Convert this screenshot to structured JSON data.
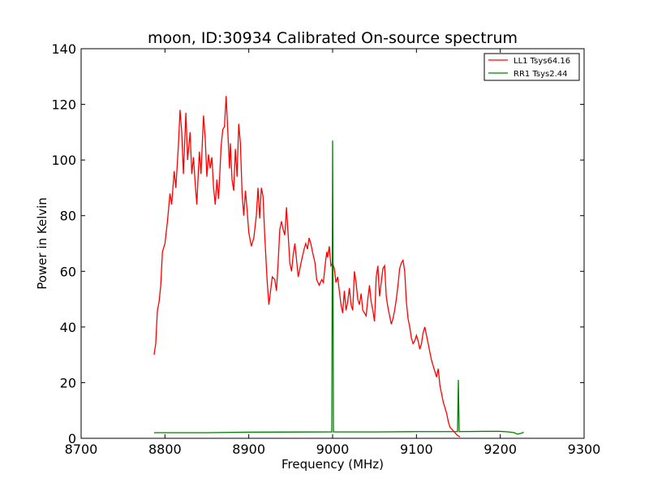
{
  "chart_data": {
    "type": "line",
    "title": "moon, ID:30934 Calibrated On-source spectrum",
    "xlabel": "Frequency (MHz)",
    "ylabel": "Power in Kelvin",
    "xlim": [
      8700,
      9300
    ],
    "ylim": [
      0,
      140
    ],
    "xticks": [
      8700,
      8800,
      8900,
      9000,
      9100,
      9200,
      9300
    ],
    "yticks": [
      0,
      20,
      40,
      60,
      80,
      100,
      120,
      140
    ],
    "grid": false,
    "legend_position": "top-right",
    "series": [
      {
        "name": "LL1 Tsys64.16",
        "color": "#ff0000",
        "points": [
          [
            8787,
            30
          ],
          [
            8789,
            34
          ],
          [
            8791,
            46
          ],
          [
            8793,
            49
          ],
          [
            8795,
            55
          ],
          [
            8797,
            67
          ],
          [
            8800,
            70
          ],
          [
            8803,
            78
          ],
          [
            8806,
            88
          ],
          [
            8808,
            84
          ],
          [
            8811,
            96
          ],
          [
            8813,
            90
          ],
          [
            8816,
            105
          ],
          [
            8818,
            118
          ],
          [
            8820,
            110
          ],
          [
            8822,
            95
          ],
          [
            8825,
            117
          ],
          [
            8827,
            100
          ],
          [
            8830,
            110
          ],
          [
            8832,
            95
          ],
          [
            8834,
            101
          ],
          [
            8836,
            92
          ],
          [
            8838,
            84
          ],
          [
            8841,
            103
          ],
          [
            8843,
            95
          ],
          [
            8846,
            116
          ],
          [
            8848,
            108
          ],
          [
            8850,
            94
          ],
          [
            8852,
            102
          ],
          [
            8854,
            97
          ],
          [
            8856,
            101
          ],
          [
            8858,
            90
          ],
          [
            8860,
            84
          ],
          [
            8862,
            93
          ],
          [
            8864,
            86
          ],
          [
            8867,
            105
          ],
          [
            8869,
            111
          ],
          [
            8871,
            112
          ],
          [
            8873,
            123
          ],
          [
            8875,
            110
          ],
          [
            8877,
            97
          ],
          [
            8878,
            106
          ],
          [
            8880,
            93
          ],
          [
            8882,
            89
          ],
          [
            8884,
            104
          ],
          [
            8886,
            94
          ],
          [
            8888,
            113
          ],
          [
            8890,
            106
          ],
          [
            8892,
            88
          ],
          [
            8894,
            80
          ],
          [
            8896,
            89
          ],
          [
            8898,
            82
          ],
          [
            8900,
            74
          ],
          [
            8903,
            69
          ],
          [
            8906,
            72
          ],
          [
            8909,
            80
          ],
          [
            8911,
            90
          ],
          [
            8913,
            79
          ],
          [
            8915,
            90
          ],
          [
            8917,
            87
          ],
          [
            8919,
            73
          ],
          [
            8922,
            56
          ],
          [
            8924,
            48
          ],
          [
            8926,
            53
          ],
          [
            8928,
            58
          ],
          [
            8931,
            57
          ],
          [
            8933,
            53
          ],
          [
            8935,
            63
          ],
          [
            8937,
            75
          ],
          [
            8939,
            78
          ],
          [
            8941,
            75
          ],
          [
            8943,
            73
          ],
          [
            8945,
            83
          ],
          [
            8947,
            73
          ],
          [
            8949,
            63
          ],
          [
            8951,
            60
          ],
          [
            8953,
            66
          ],
          [
            8955,
            70
          ],
          [
            8957,
            64
          ],
          [
            8959,
            58
          ],
          [
            8961,
            61
          ],
          [
            8963,
            64
          ],
          [
            8966,
            68
          ],
          [
            8968,
            70
          ],
          [
            8970,
            68
          ],
          [
            8972,
            72
          ],
          [
            8974,
            70
          ],
          [
            8976,
            67
          ],
          [
            8979,
            63
          ],
          [
            8981,
            57
          ],
          [
            8984,
            55
          ],
          [
            8987,
            57
          ],
          [
            8989,
            56
          ],
          [
            8991,
            62
          ],
          [
            8993,
            67
          ],
          [
            8994,
            65
          ],
          [
            8996,
            69
          ],
          [
            8998,
            62
          ],
          [
            9000,
            63
          ],
          [
            9002,
            61
          ],
          [
            9004,
            56
          ],
          [
            9006,
            58
          ],
          [
            9008,
            53
          ],
          [
            9010,
            48
          ],
          [
            9012,
            45
          ],
          [
            9014,
            53
          ],
          [
            9016,
            46
          ],
          [
            9018,
            49
          ],
          [
            9020,
            54
          ],
          [
            9022,
            48
          ],
          [
            9024,
            46
          ],
          [
            9026,
            60
          ],
          [
            9028,
            56
          ],
          [
            9030,
            50
          ],
          [
            9032,
            48
          ],
          [
            9034,
            52
          ],
          [
            9036,
            46
          ],
          [
            9038,
            45
          ],
          [
            9040,
            44
          ],
          [
            9042,
            50
          ],
          [
            9044,
            55
          ],
          [
            9046,
            49
          ],
          [
            9048,
            46
          ],
          [
            9050,
            42
          ],
          [
            9052,
            58
          ],
          [
            9054,
            62
          ],
          [
            9056,
            51
          ],
          [
            9058,
            56
          ],
          [
            9060,
            61
          ],
          [
            9062,
            62
          ],
          [
            9064,
            51
          ],
          [
            9066,
            47
          ],
          [
            9068,
            44
          ],
          [
            9070,
            41
          ],
          [
            9072,
            43
          ],
          [
            9074,
            46
          ],
          [
            9076,
            50
          ],
          [
            9078,
            55
          ],
          [
            9080,
            61
          ],
          [
            9082,
            63
          ],
          [
            9084,
            64
          ],
          [
            9086,
            60
          ],
          [
            9088,
            49
          ],
          [
            9090,
            43
          ],
          [
            9092,
            40
          ],
          [
            9094,
            36
          ],
          [
            9096,
            34
          ],
          [
            9098,
            35
          ],
          [
            9100,
            37
          ],
          [
            9102,
            35
          ],
          [
            9104,
            32
          ],
          [
            9106,
            34
          ],
          [
            9108,
            38
          ],
          [
            9110,
            40
          ],
          [
            9112,
            37
          ],
          [
            9114,
            34
          ],
          [
            9116,
            31
          ],
          [
            9118,
            28
          ],
          [
            9120,
            26
          ],
          [
            9122,
            24
          ],
          [
            9124,
            22
          ],
          [
            9126,
            25
          ],
          [
            9128,
            19
          ],
          [
            9130,
            16
          ],
          [
            9132,
            13
          ],
          [
            9134,
            11
          ],
          [
            9136,
            9
          ],
          [
            9138,
            6
          ],
          [
            9140,
            4
          ],
          [
            9143,
            3
          ],
          [
            9146,
            2
          ],
          [
            9149,
            1
          ],
          [
            9152,
            0.5
          ]
        ]
      },
      {
        "name": "RR1 Tsys2.44",
        "color": "#008000",
        "points": [
          [
            8787,
            2
          ],
          [
            8850,
            2
          ],
          [
            8900,
            2.2
          ],
          [
            8999,
            2.3
          ],
          [
            9000,
            107
          ],
          [
            9001,
            2.3
          ],
          [
            9050,
            2.3
          ],
          [
            9100,
            2.4
          ],
          [
            9149,
            2.4
          ],
          [
            9150,
            21
          ],
          [
            9151,
            2.4
          ],
          [
            9180,
            2.5
          ],
          [
            9200,
            2.5
          ],
          [
            9210,
            2.3
          ],
          [
            9217,
            2
          ],
          [
            9220,
            1.5
          ],
          [
            9225,
            1.8
          ],
          [
            9228,
            2.2
          ]
        ]
      }
    ]
  }
}
